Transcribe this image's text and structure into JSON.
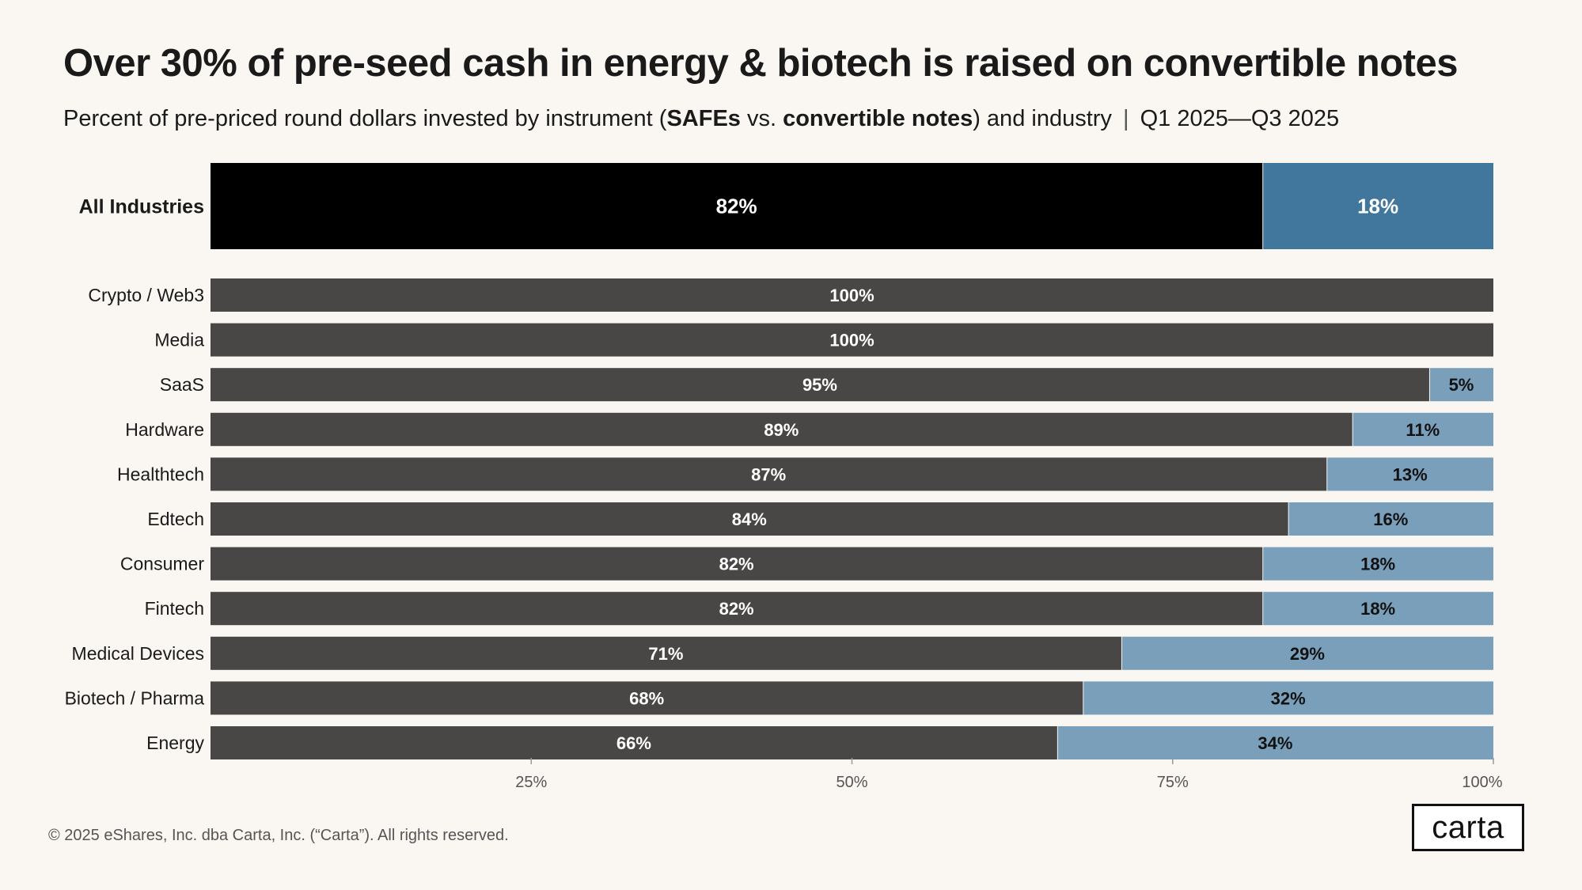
{
  "title": "Over 30% of pre-seed cash in energy & biotech is raised on convertible notes",
  "subtitle": {
    "prefix": "Percent of pre-priced round dollars invested by instrument (",
    "safes": "SAFEs",
    "vs": " vs. ",
    "notes": "convertible notes",
    "suffix": ") and industry",
    "separator": "|",
    "period": "Q1 2025—Q3 2025"
  },
  "footer": "© 2025 eShares, Inc. dba Carta, Inc. (“Carta”). All rights reserved.",
  "logo": "carta",
  "colors": {
    "background": "#faf7f2",
    "highlight_safe": "#000000",
    "highlight_note": "#41769d",
    "safe": "#494746",
    "note": "#7a9fbb",
    "axis": "#999999"
  },
  "chart_data": {
    "type": "bar",
    "orientation": "horizontal",
    "stacked": true,
    "categories": [
      "All Industries",
      "Crypto / Web3",
      "Media",
      "SaaS",
      "Hardware",
      "Healthtech",
      "Edtech",
      "Consumer",
      "Fintech",
      "Medical Devices",
      "Biotech / Pharma",
      "Energy"
    ],
    "series": [
      {
        "name": "SAFEs",
        "values": [
          82,
          100,
          100,
          95,
          89,
          87,
          84,
          82,
          82,
          71,
          68,
          66
        ]
      },
      {
        "name": "convertible notes",
        "values": [
          18,
          0,
          0,
          5,
          11,
          13,
          16,
          18,
          18,
          29,
          32,
          34
        ]
      }
    ],
    "labels": {
      "SAFEs": [
        "82%",
        "100%",
        "100%",
        "95%",
        "89%",
        "87%",
        "84%",
        "82%",
        "82%",
        "71%",
        "68%",
        "66%"
      ],
      "convertible notes": [
        "18%",
        "",
        "",
        "5%",
        "11%",
        "13%",
        "16%",
        "18%",
        "18%",
        "29%",
        "32%",
        "34%"
      ]
    },
    "highlighted_category": "All Industries",
    "xlim": [
      0,
      100
    ],
    "xticks": [
      25,
      50,
      75,
      100
    ],
    "xtick_labels": [
      "25%",
      "50%",
      "75%",
      "100%"
    ],
    "grid": false,
    "legend": "none"
  }
}
